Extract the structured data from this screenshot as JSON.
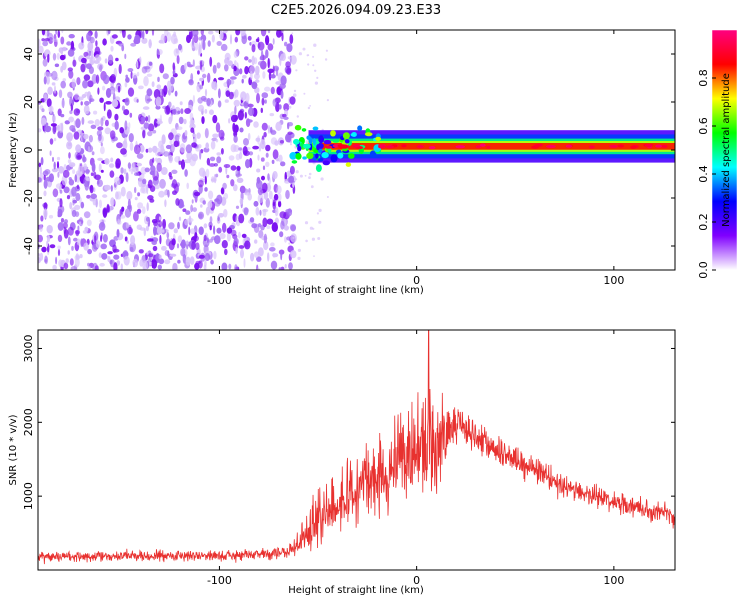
{
  "title": "C2E5.2026.094.09.23.E33",
  "chart_data": [
    {
      "type": "heatmap",
      "name": "spectrogram",
      "xlabel": "Height of straight line (km)",
      "ylabel": "Frequency (Hz)",
      "xlim": [
        -192,
        131
      ],
      "ylim": [
        -50,
        50
      ],
      "xticks": [
        -100,
        0,
        100
      ],
      "yticks": [
        -40,
        -20,
        0,
        20,
        40
      ],
      "colorbar": {
        "label": "Normalized spectral amplitude",
        "range": [
          0,
          1
        ],
        "ticks": [
          0.0,
          0.2,
          0.4,
          0.6,
          0.8
        ],
        "tick_labels": [
          "0.0",
          "0.2",
          "0.4",
          "0.6",
          "0.8"
        ],
        "colormap": [
          "#ffffff",
          "#8000ff",
          "#0000ff",
          "#00ffff",
          "#00ff00",
          "#ffff00",
          "#ff0000",
          "#ff0080"
        ]
      },
      "regions": [
        {
          "description": "noise",
          "x_range": [
            -192,
            -65
          ],
          "freq_range": [
            -50,
            50
          ],
          "amplitude": 0.1
        },
        {
          "description": "signal band",
          "x_range": [
            -65,
            131
          ],
          "center_freq": 1.5,
          "bandwidth_hz": 5,
          "peak_amplitude": 0.95
        }
      ]
    },
    {
      "type": "line",
      "name": "snr",
      "xlabel": "Height of straight line (km)",
      "ylabel": "SNR (10 * v/v)",
      "xlim": [
        -192,
        131
      ],
      "ylim": [
        0,
        3250
      ],
      "xticks": [
        -100,
        0,
        100
      ],
      "yticks": [
        1000,
        2000,
        3000
      ],
      "series": [
        {
          "name": "SNR",
          "color": "#e8312f",
          "envelope": {
            "x": [
              -192,
              -120,
              -80,
              -66,
              -60,
              -50,
              -40,
              -30,
              -20,
              -10,
              0,
              5,
              10,
              20,
              30,
              50,
              70,
              90,
              110,
              131
            ],
            "mean": [
              180,
              190,
              210,
              230,
              330,
              700,
              900,
              1100,
              1250,
              1450,
              1550,
              1650,
              1650,
              2050,
              1800,
              1500,
              1200,
              1000,
              850,
              720
            ],
            "noise": [
              60,
              65,
              70,
              80,
              150,
              350,
              350,
              400,
              450,
              500,
              550,
              600,
              550,
              250,
              200,
              170,
              150,
              130,
              120,
              110
            ]
          },
          "peak": {
            "x": 6,
            "y": 3250
          }
        }
      ]
    }
  ]
}
